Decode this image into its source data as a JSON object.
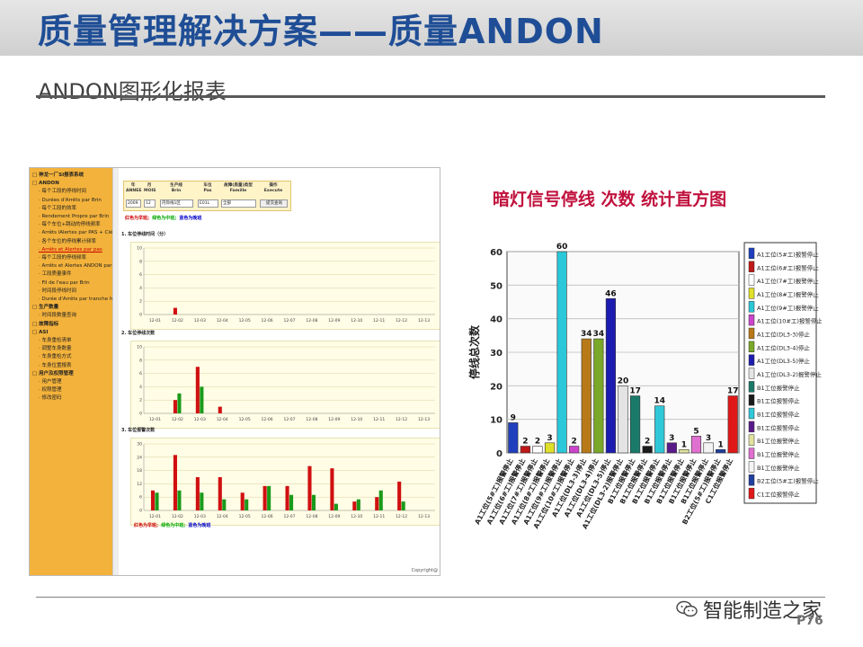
{
  "slide": {
    "title": "质量管理解决方案——质量ANDON",
    "subtitle": "ANDON图形化报表",
    "page_number": "P76",
    "watermark": "智能制造之家"
  },
  "screenshot": {
    "sidebar_items": [
      {
        "label": "神龙一厂SI报表系统",
        "level": 0
      },
      {
        "label": "ANDON",
        "level": 0
      },
      {
        "label": "每个工段的停线时间",
        "level": 1
      },
      {
        "label": "Durées d'Arrêts par Brin",
        "level": 1
      },
      {
        "label": "每个工段的效率",
        "level": 1
      },
      {
        "label": "Rendement Propre par Brin",
        "level": 1
      },
      {
        "label": "每个车位+跳动的停线频率",
        "level": 1
      },
      {
        "label": "Arrêts lAlertes par PAS + Clé d'un Brin",
        "level": 1
      },
      {
        "label": "各个车位的停线累计频率",
        "level": 1
      },
      {
        "label": "Arrêts et Alertes par pas",
        "level": 1
      },
      {
        "label": "每个工段的停线频率",
        "level": 1
      },
      {
        "label": "Arrêts et Alertes ANDON par Brin",
        "level": 1
      },
      {
        "label": "工段质量事件",
        "level": 1
      },
      {
        "label": "Fil de l'eau par Brin",
        "level": 1
      },
      {
        "label": "时间段停线时间",
        "level": 1
      },
      {
        "label": "Durée d'Arrêts par tranche horaire",
        "level": 1
      },
      {
        "label": "生产数量",
        "level": 0
      },
      {
        "label": "时间段数量查询",
        "level": 1
      },
      {
        "label": "故障指标",
        "level": 0
      },
      {
        "label": "ASI",
        "level": 0
      },
      {
        "label": "车身重检清单",
        "level": 1
      },
      {
        "label": "调整车身数量",
        "level": 1
      },
      {
        "label": "车身重检方式",
        "level": 1
      },
      {
        "label": "车身位置报表",
        "level": 1
      },
      {
        "label": "用户及权限管理",
        "level": 0
      },
      {
        "label": "用户管理",
        "level": 1
      },
      {
        "label": "权限管理",
        "level": 1
      },
      {
        "label": "修改密码",
        "level": 1
      }
    ],
    "filter": {
      "headers": [
        {
          "cn": "年",
          "fr": "ANNEE"
        },
        {
          "cn": "月",
          "fr": "MOIS"
        },
        {
          "cn": "生产线",
          "fr": "Brin"
        },
        {
          "cn": "车位",
          "fr": "Pas"
        },
        {
          "cn": "故障(质量)类型",
          "fr": "Famille"
        },
        {
          "cn": "操作",
          "fr": "Execute"
        }
      ],
      "year": "2009",
      "month": "12",
      "line": "内饰线1区",
      "pas": "E01L",
      "family": "全部",
      "execute": "提交查询"
    },
    "legend": {
      "red": "红色为早班;",
      "green": "绿色为中班;",
      "blue": "蓝色为晚班"
    },
    "chart1_title": "1. 车位停线时间（分）",
    "chart2_title": "2. 车位停线次数",
    "chart3_title": "3. 车位报警次数",
    "x_labels": [
      "12-01",
      "12-02",
      "12-03",
      "12-04",
      "12-05",
      "12-06",
      "12-07",
      "12-08",
      "12-09",
      "12-10",
      "12-11",
      "12-12",
      "12-13"
    ],
    "copyright": "Copyright@"
  },
  "chart_data": [
    {
      "type": "bar",
      "title": "1. 车位停线时间（分）",
      "categories": [
        "12-01",
        "12-02",
        "12-03",
        "12-04",
        "12-05",
        "12-06",
        "12-07",
        "12-08",
        "12-09",
        "12-10",
        "12-11",
        "12-12",
        "12-13"
      ],
      "ylim": [
        0,
        10
      ],
      "series": [
        {
          "name": "红色为早班",
          "color": "#d01010",
          "values": [
            0,
            1,
            0,
            0,
            0,
            0,
            0,
            0,
            0,
            0,
            0,
            0,
            0
          ]
        },
        {
          "name": "绿色为中班",
          "color": "#1a9a1a",
          "values": [
            0,
            0,
            0,
            0,
            0,
            0,
            0,
            0,
            0,
            0,
            0,
            0,
            0
          ]
        }
      ]
    },
    {
      "type": "bar",
      "title": "2. 车位停线次数",
      "categories": [
        "12-01",
        "12-02",
        "12-03",
        "12-04",
        "12-05",
        "12-06",
        "12-07",
        "12-08",
        "12-09",
        "12-10",
        "12-11",
        "12-12",
        "12-13"
      ],
      "ylim": [
        0,
        10
      ],
      "series": [
        {
          "name": "红色为早班",
          "color": "#d01010",
          "values": [
            0,
            2,
            7,
            1,
            0,
            0,
            0,
            0,
            0,
            0,
            0,
            0,
            0
          ]
        },
        {
          "name": "绿色为中班",
          "color": "#1a9a1a",
          "values": [
            0,
            3,
            4,
            0,
            0,
            0,
            0,
            0,
            0,
            0,
            0,
            0,
            0
          ]
        }
      ]
    },
    {
      "type": "bar",
      "title": "3. 车位报警次数",
      "categories": [
        "12-01",
        "12-02",
        "12-03",
        "12-04",
        "12-05",
        "12-06",
        "12-07",
        "12-08",
        "12-09",
        "12-10",
        "12-11",
        "12-12",
        "12-13"
      ],
      "ylim": [
        0,
        30
      ],
      "series": [
        {
          "name": "红色为早班",
          "color": "#d01010",
          "values": [
            9,
            25,
            15,
            15,
            8,
            11,
            11,
            20,
            19,
            4,
            6,
            13,
            0
          ]
        },
        {
          "name": "绿色为中班",
          "color": "#1a9a1a",
          "values": [
            8,
            9,
            8,
            5,
            5,
            11,
            7,
            7,
            3,
            5,
            9,
            4,
            0
          ]
        }
      ]
    },
    {
      "type": "bar",
      "title": "暗灯信号停线 次数 统计直方图",
      "ylabel": "停线总次数",
      "ylim": [
        0,
        60
      ],
      "categories": [
        "A1工位(5#工)报警停止",
        "A1工位(6#工)报警停止",
        "A1工位(7#工)报警停止",
        "A1工位(8#工)报警停止",
        "A1工位(9#工)报警停止",
        "A1工位(10#工)报警停止",
        "A1工位(DL3-3)停止",
        "A1工位(DL3-4)停止",
        "A1工位(DL3-5)停止",
        "A1工位(DL3-2)报警停止",
        "B1工位报警停止",
        "B1工位报警停止",
        "B1工位报警停止",
        "B1工位报警停止",
        "B1工位报警停止",
        "B1工位报警停止",
        "B1工位报警停止",
        "B2工位(5#工)报警停止",
        "C1工位报警停止"
      ],
      "values": [
        9,
        2,
        2,
        3,
        60,
        2,
        34,
        34,
        46,
        20,
        17,
        2,
        14,
        3,
        1,
        5,
        3,
        1,
        17
      ],
      "colors": [
        "#1f3fbf",
        "#c01818",
        "#ffffff",
        "#e0e02a",
        "#2ac8d8",
        "#cc44cc",
        "#b87a18",
        "#7aa828",
        "#1c1cb0",
        "#e4e4e4",
        "#1a7a6a",
        "#1a1a1a",
        "#30c8d8",
        "#5a1a8a",
        "#e2e2a0",
        "#e070d0",
        "#f4f4f4",
        "#1f3f9f",
        "#e01818"
      ],
      "legend": [
        "A1工位(5#工)报警停止",
        "A1工位(6#工)报警停止",
        "A1工位(7#工)报警停止",
        "A1工位(8#工)报警停止",
        "A1工位(9#工)报警停止",
        "A1工位(10#工)报警停止",
        "A1工位(DL3-3)停止",
        "A1工位(DL3-4)停止",
        "A1工位(DL3-5)停止",
        "A1工位(DL3-2)报警停止",
        "B1工位报警停止",
        "B1工位报警停止",
        "B1工位报警停止",
        "B1工位报警停止",
        "B1工位报警停止",
        "B1工位报警停止",
        "B1工位报警停止",
        "B2工位(5#工)报警停止",
        "C1工位报警停止"
      ]
    }
  ]
}
